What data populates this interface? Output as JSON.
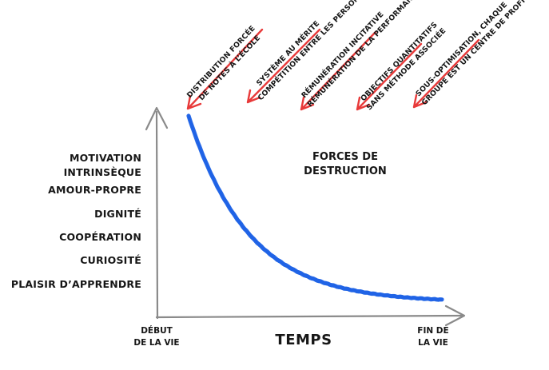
{
  "diagram": {
    "y_labels": [
      "MOTIVATION",
      "INTRINSÈQUE",
      "AMOUR-PROPRE",
      "DIGNITÉ",
      "COOPÉRATION",
      "CURIOSITÉ",
      "PLAISIR D’APPRENDRE"
    ],
    "x_axis": {
      "start": [
        "DÉBUT",
        "DE LA VIE"
      ],
      "title": "TEMPS",
      "end": [
        "FIN DE",
        "LA VIE"
      ]
    },
    "forces_title": [
      "FORCES DE",
      "DESTRUCTION"
    ],
    "forces": [
      [
        "DISTRIBUTION FORCÉE",
        "DE NOTES À L’ÉCOLE"
      ],
      [
        "SYSTÈME AU MÉRITE",
        "COMPÉTITION ENTRE LES PERSONNES"
      ],
      [
        "RÉMUNÉRATION INCITATIVE",
        "RÉMUNÉRATION DE LA PERFORMANCE"
      ],
      [
        "OBJECTIFS QUANTITATIFS",
        "SANS MÉTHODE ASSOCIÉE"
      ],
      [
        "SOUS-OPTIMISATION, CHAQUE",
        "GROUPE EST UN CENTRE DE PROFIT"
      ]
    ],
    "colors": {
      "curve": "#1f63e6",
      "arrows": "#e83a3a",
      "axes": "#888888",
      "text": "#161616"
    }
  }
}
